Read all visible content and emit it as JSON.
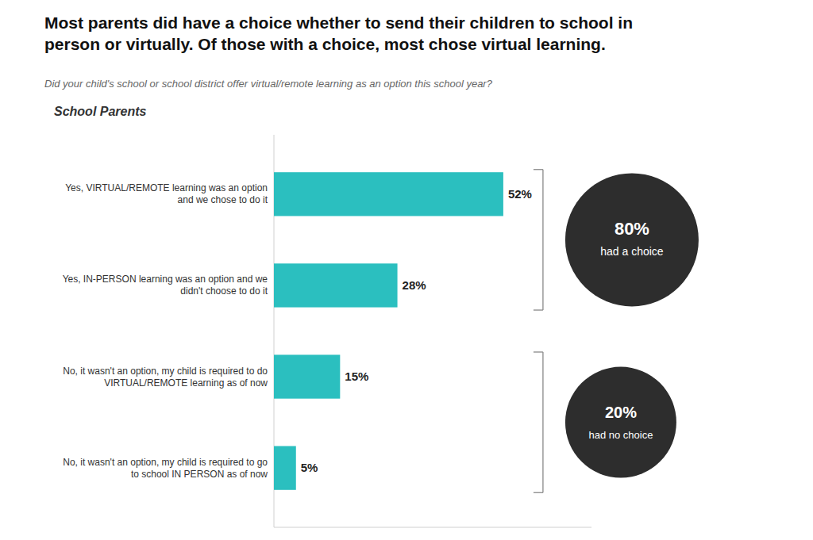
{
  "chart_data": {
    "type": "bar",
    "orientation": "horizontal",
    "title": "Most parents did have a choice whether to send their children to school in\nperson or virtually. Of those with a choice, most chose virtual learning.",
    "subtitle": "Did your child's school or school district offer virtual/remote learning as an option this school year?",
    "ylabel": "School Parents",
    "categories": [
      "Yes, VIRTUAL/REMOTE learning was an option\nand we chose to do it",
      "Yes, IN-PERSON learning was an option and we\ndidn't choose to do it",
      "No, it wasn't an option, my child is required to do\nVIRTUAL/REMOTE learning as of now",
      "No, it wasn't an option, my child is required to go\nto school IN PERSON as of now"
    ],
    "values": [
      52,
      28,
      15,
      5
    ],
    "value_labels": [
      "52%",
      "28%",
      "15%",
      "5%"
    ],
    "data_labels": true,
    "color": "#2bbfbf",
    "xlim": [
      0,
      72
    ],
    "tick_labels": false,
    "grid": false,
    "annotations": [
      {
        "label": "80%",
        "text": "had a choice",
        "color": "#2d2d2d"
      },
      {
        "label": "20%",
        "text": "had no choice",
        "color": "#2d2d2d"
      }
    ]
  }
}
